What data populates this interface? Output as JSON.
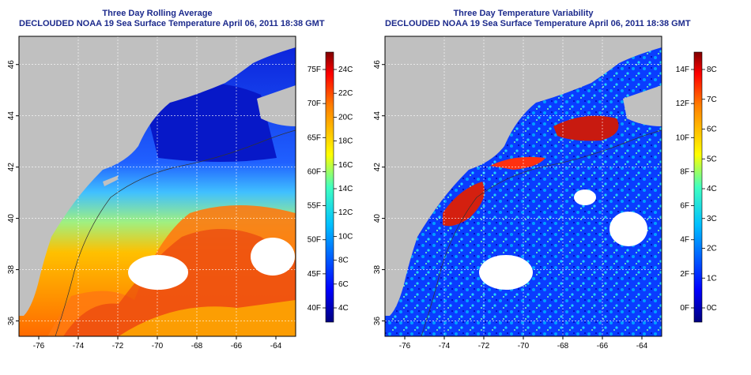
{
  "panels": [
    {
      "title": "Three Day Rolling Average",
      "subtitle": "DECLOUDED NOAA 19 Sea Surface Temperature April 06, 2011 18:38 GMT",
      "lon_ticks": [
        "-76",
        "-74",
        "-72",
        "-70",
        "-68",
        "-66",
        "-64"
      ],
      "lat_ticks": [
        "36",
        "38",
        "40",
        "42",
        "44",
        "46"
      ],
      "colorbar": {
        "fahrenheit": [
          "75F",
          "70F",
          "65F",
          "60F",
          "55F",
          "50F",
          "45F",
          "40F"
        ],
        "celsius": [
          "24C",
          "22C",
          "20C",
          "18C",
          "16C",
          "14C",
          "12C",
          "10C",
          "8C",
          "6C",
          "4C"
        ]
      }
    },
    {
      "title": "Three Day Temperature Variability",
      "subtitle": "DECLOUDED NOAA 19 Sea Surface Temperature April 06, 2011 18:38 GMT",
      "lon_ticks": [
        "-76",
        "-74",
        "-72",
        "-70",
        "-68",
        "-66",
        "-64"
      ],
      "lat_ticks": [
        "36",
        "38",
        "40",
        "42",
        "44",
        "46"
      ],
      "colorbar": {
        "fahrenheit": [
          "14F",
          "12F",
          "10F",
          "8F",
          "6F",
          "4F",
          "2F",
          "0F"
        ],
        "celsius": [
          "8C",
          "7C",
          "6C",
          "5C",
          "4C",
          "3C",
          "2C",
          "1C",
          "0C"
        ]
      }
    }
  ],
  "colors": {
    "land": "#c0c0c0",
    "title_text": "#1c2a8c",
    "colormap": [
      "#00007f",
      "#0000ff",
      "#0080ff",
      "#00ffff",
      "#80ff80",
      "#ffff00",
      "#ff8000",
      "#ff0000",
      "#7f0000"
    ]
  }
}
